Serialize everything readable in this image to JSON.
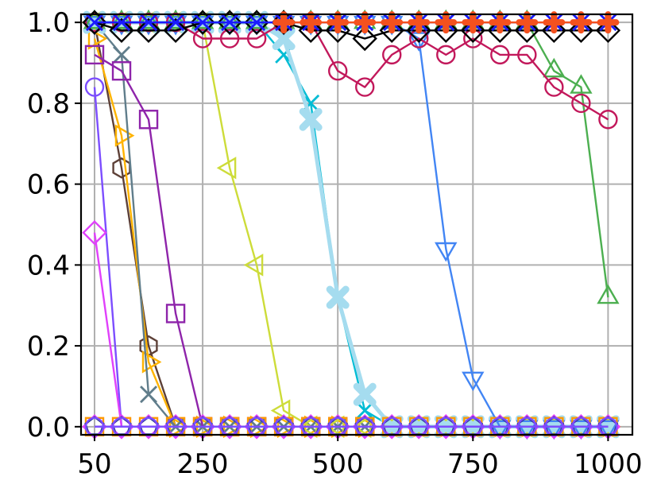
{
  "chart_data": {
    "type": "line",
    "title": "",
    "xlabel": "",
    "ylabel": "",
    "xlim": [
      25,
      1045
    ],
    "ylim": [
      -0.02,
      1.02
    ],
    "grid": true,
    "xticks": [
      50,
      250,
      500,
      750,
      1000
    ],
    "xtick_labels": [
      "50",
      "250",
      "500",
      "750",
      "1000"
    ],
    "yticks": [
      0.0,
      0.2,
      0.4,
      0.6,
      0.8,
      1.0
    ],
    "ytick_labels": [
      "0.0",
      "0.2",
      "0.4",
      "0.6",
      "0.8",
      "1.0"
    ],
    "x": [
      50,
      100,
      150,
      200,
      250,
      300,
      350,
      400,
      450,
      500,
      550,
      600,
      650,
      700,
      750,
      800,
      850,
      900,
      950,
      1000
    ],
    "series": [
      {
        "color": "#7c4dff",
        "marker": "circle",
        "values": [
          0.84,
          0,
          0,
          0,
          0,
          0,
          0,
          0,
          0,
          0,
          0,
          0,
          0,
          0,
          0,
          0,
          0,
          0,
          0,
          0
        ]
      },
      {
        "color": "#e040fb",
        "marker": "diamond",
        "values": [
          0.48,
          0,
          0,
          0,
          0,
          0,
          0,
          0,
          0,
          0,
          0,
          0,
          0,
          0,
          0,
          0,
          0,
          0,
          0,
          0
        ]
      },
      {
        "color": "#5d4037",
        "marker": "hexagon",
        "values": [
          1.0,
          0.64,
          0.2,
          0,
          0,
          0,
          0,
          0,
          0,
          0,
          0,
          0,
          0,
          0,
          0,
          0,
          0,
          0,
          0,
          0
        ]
      },
      {
        "color": "#ffb300",
        "marker": "triangle-right",
        "values": [
          0.96,
          0.72,
          0.16,
          0,
          0,
          0,
          0,
          0,
          0,
          0,
          0,
          0,
          0,
          0,
          0,
          0,
          0,
          0,
          0,
          0
        ]
      },
      {
        "color": "#607d8b",
        "marker": "x",
        "values": [
          1.0,
          0.92,
          0.08,
          0,
          0,
          0,
          0,
          0,
          0,
          0,
          0,
          0,
          0,
          0,
          0,
          0,
          0,
          0,
          0,
          0
        ]
      },
      {
        "color": "#8e24aa",
        "marker": "square",
        "values": [
          0.92,
          0.88,
          0.76,
          0.28,
          0,
          0,
          0,
          0,
          0,
          0,
          0,
          0,
          0,
          0,
          0,
          0,
          0,
          0,
          0,
          0
        ]
      },
      {
        "color": "#cddc39",
        "marker": "triangle-left",
        "values": [
          1.0,
          1.0,
          1.0,
          1.0,
          1.0,
          0.64,
          0.4,
          0.04,
          0,
          0,
          0,
          0,
          0,
          0,
          0,
          0,
          0,
          0,
          0,
          0
        ]
      },
      {
        "color": "#00bcd4",
        "marker": "x",
        "values": [
          1.0,
          1.0,
          1.0,
          1.0,
          1.0,
          1.0,
          1.0,
          0.92,
          0.8,
          0.32,
          0.04,
          0,
          0,
          0,
          0,
          0,
          0,
          0,
          0,
          0
        ]
      },
      {
        "color": "#a5dcef",
        "marker": "x-thick",
        "values": [
          1.0,
          1.0,
          1.0,
          1.0,
          1.0,
          1.0,
          1.0,
          0.96,
          0.76,
          0.32,
          0.08,
          0,
          0,
          0,
          0,
          0,
          0,
          0,
          0,
          0
        ]
      },
      {
        "color": "#4285f4",
        "marker": "triangle-down",
        "values": [
          1.0,
          1.0,
          1.0,
          1.0,
          1.0,
          1.0,
          1.0,
          1.0,
          1.0,
          1.0,
          1.0,
          1.0,
          0.96,
          0.44,
          0.12,
          0,
          0,
          0,
          0,
          0
        ]
      },
      {
        "color": "#4caf50",
        "marker": "triangle-up",
        "values": [
          1.0,
          1.0,
          1.0,
          1.0,
          1.0,
          1.0,
          1.0,
          1.0,
          1.0,
          1.0,
          1.0,
          1.0,
          1.0,
          1.0,
          1.0,
          1.0,
          1.0,
          0.88,
          0.84,
          0.32
        ]
      },
      {
        "color": "#c2185b",
        "marker": "circle",
        "values": [
          1.0,
          1.0,
          1.0,
          1.0,
          0.96,
          0.96,
          0.96,
          1.0,
          1.0,
          0.88,
          0.84,
          0.92,
          0.96,
          0.92,
          0.96,
          0.92,
          0.92,
          0.84,
          0.8,
          0.76
        ]
      },
      {
        "color": "#000000",
        "marker": "diamond",
        "values": [
          1.0,
          0.98,
          0.98,
          0.98,
          1.0,
          1.0,
          1.0,
          1.0,
          0.98,
          0.98,
          0.96,
          0.98,
          0.98,
          0.98,
          0.98,
          0.98,
          0.98,
          0.98,
          0.98,
          0.98
        ]
      },
      {
        "color": "#1a1aff",
        "marker": "x",
        "values": [
          1.0,
          1.0,
          1.0,
          1.0,
          1.0,
          1.0,
          1.0,
          1.0,
          1.0,
          1.0,
          1.0,
          1.0,
          1.0,
          1.0,
          1.0,
          1.0,
          1.0,
          1.0,
          1.0,
          1.0
        ]
      },
      {
        "color": "#f4511e",
        "marker": "plus",
        "values": [
          null,
          null,
          null,
          null,
          null,
          null,
          null,
          1.0,
          1.0,
          1.0,
          1.0,
          1.0,
          1.0,
          1.0,
          1.0,
          1.0,
          1.0,
          1.0,
          1.0,
          1.0
        ]
      },
      {
        "color": "#ff9800",
        "marker": "square",
        "values": [
          0,
          0,
          0,
          0,
          0,
          0,
          0,
          0,
          0,
          0,
          0,
          0,
          0,
          0,
          0,
          0,
          0,
          0,
          0,
          0
        ]
      },
      {
        "color": "#e040fb",
        "marker": "diamond",
        "values": [
          0,
          0,
          0,
          0,
          0,
          0,
          0,
          0,
          0,
          0,
          0,
          0,
          0,
          0,
          0,
          0,
          0,
          0,
          0,
          0
        ]
      },
      {
        "color": "#303f9f",
        "marker": "pentagon",
        "values": [
          0,
          0,
          0,
          0,
          0,
          0,
          0,
          0,
          0,
          0,
          0,
          0,
          0,
          0,
          0,
          0,
          0,
          0,
          0,
          0
        ]
      },
      {
        "color": "#7c4dff",
        "marker": "circle",
        "values": [
          0,
          0,
          0,
          0,
          0,
          0,
          0,
          0,
          0,
          0,
          0,
          0,
          0,
          0,
          0,
          0,
          0,
          0,
          0,
          0
        ]
      }
    ]
  }
}
